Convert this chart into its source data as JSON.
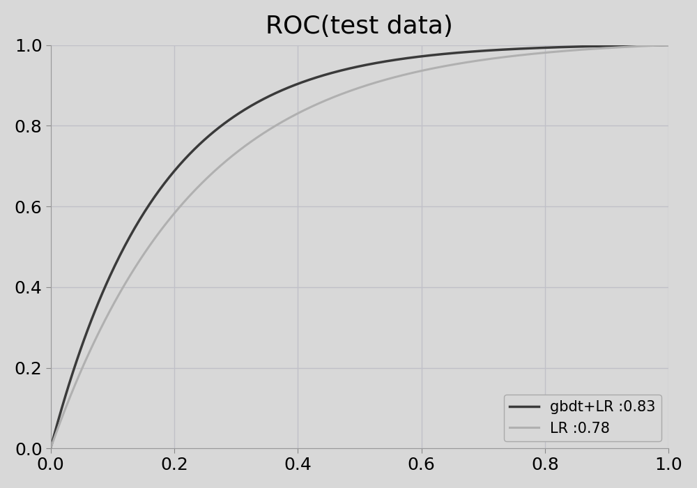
{
  "title": "ROC(test data)",
  "title_fontsize": 26,
  "background_color": "#d8d8d8",
  "plot_bg_color": "#d8d8d8",
  "xlim": [
    0.0,
    1.0
  ],
  "ylim": [
    0.0,
    1.0
  ],
  "xticks": [
    0.0,
    0.2,
    0.4,
    0.6,
    0.8,
    1.0
  ],
  "yticks": [
    0.0,
    0.2,
    0.4,
    0.6,
    0.8,
    1.0
  ],
  "tick_fontsize": 18,
  "grid_color": "#c0c0c8",
  "grid_linewidth": 1.0,
  "line1_label": "gbdt+LR :0.83",
  "line1_color": "#3a3a3a",
  "line1_linewidth": 2.5,
  "line2_label": "LR :0.78",
  "line2_color": "#b0b0b0",
  "line2_linewidth": 2.2,
  "legend_fontsize": 15,
  "legend_loc": "lower right",
  "auc1": 0.83,
  "auc2": 0.78,
  "figsize": [
    10.0,
    7.0
  ],
  "dpi": 100
}
